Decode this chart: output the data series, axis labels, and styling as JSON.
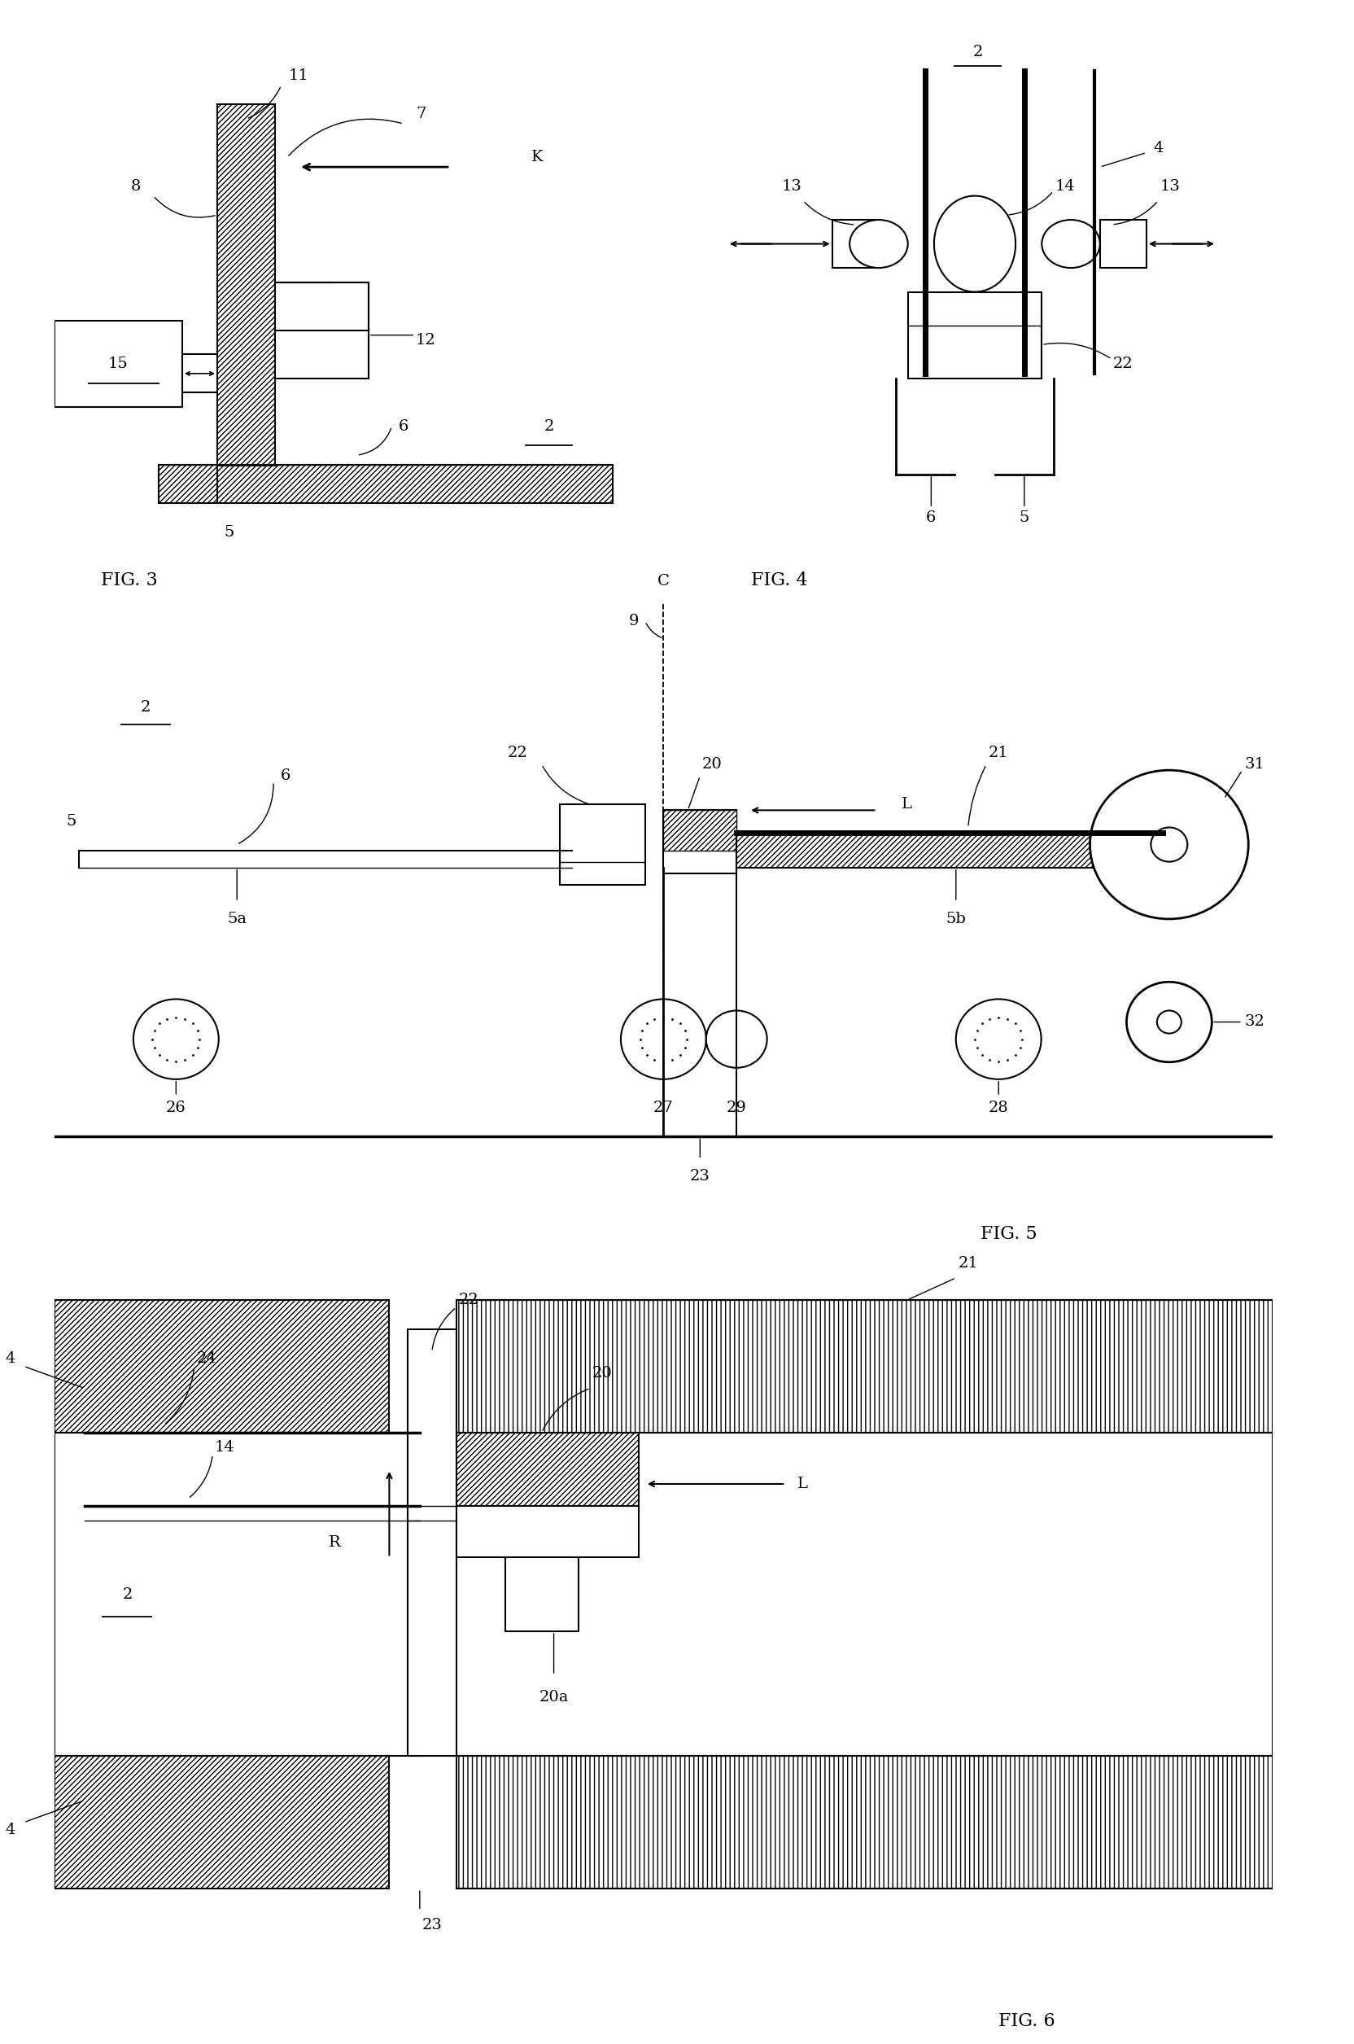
{
  "bg_color": "#ffffff",
  "fig_width": 16.64,
  "fig_height": 25.11,
  "fig3_label": "FIG. 3",
  "fig4_label": "FIG. 4",
  "fig5_label": "FIG. 5",
  "fig6_label": "FIG. 6",
  "lw": 1.5,
  "fs": 14
}
